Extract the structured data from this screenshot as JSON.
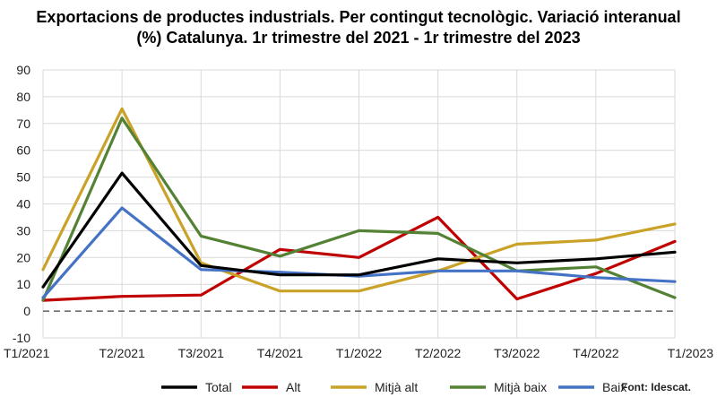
{
  "chart_data": {
    "type": "line",
    "title_line1": "Exportacions de productes industrials. Per contingut tecnològic. Variació interanual",
    "title_line2": "(%) Catalunya. 1r trimestre del 2021 - 1r trimestre del 2023",
    "categories": [
      "T1/2021",
      "T2/2021",
      "T3/2021",
      "T4/2021",
      "T1/2022",
      "T2/2022",
      "T3/2022",
      "T4/2022",
      "T1/2023"
    ],
    "ylim": [
      -10,
      90
    ],
    "yticks": [
      -10,
      0,
      10,
      20,
      30,
      40,
      50,
      60,
      70,
      80,
      90
    ],
    "grid": true,
    "zero_line": "dashed",
    "legend_position": "bottom",
    "source": "Font: Idescat.",
    "series": [
      {
        "name": "Total",
        "color": "#000000",
        "values": [
          9,
          51.5,
          17,
          13.5,
          13.5,
          19.5,
          18,
          19.5,
          22
        ]
      },
      {
        "name": "Alt",
        "color": "#c00000",
        "values": [
          4,
          5.5,
          6,
          23,
          20,
          35,
          4.5,
          14,
          26
        ]
      },
      {
        "name": "Mitjà alt",
        "color": "#c9a227",
        "values": [
          15.5,
          75.5,
          18,
          7.5,
          7.5,
          15,
          25,
          26.5,
          32.5
        ]
      },
      {
        "name": "Mitjà baix",
        "color": "#548235",
        "values": [
          4,
          72,
          28,
          20.5,
          30,
          29,
          15,
          16.5,
          5
        ]
      },
      {
        "name": "Baix",
        "color": "#4472c4",
        "values": [
          5,
          38.5,
          15.5,
          14.5,
          13,
          15,
          15,
          12.5,
          11
        ]
      }
    ]
  }
}
